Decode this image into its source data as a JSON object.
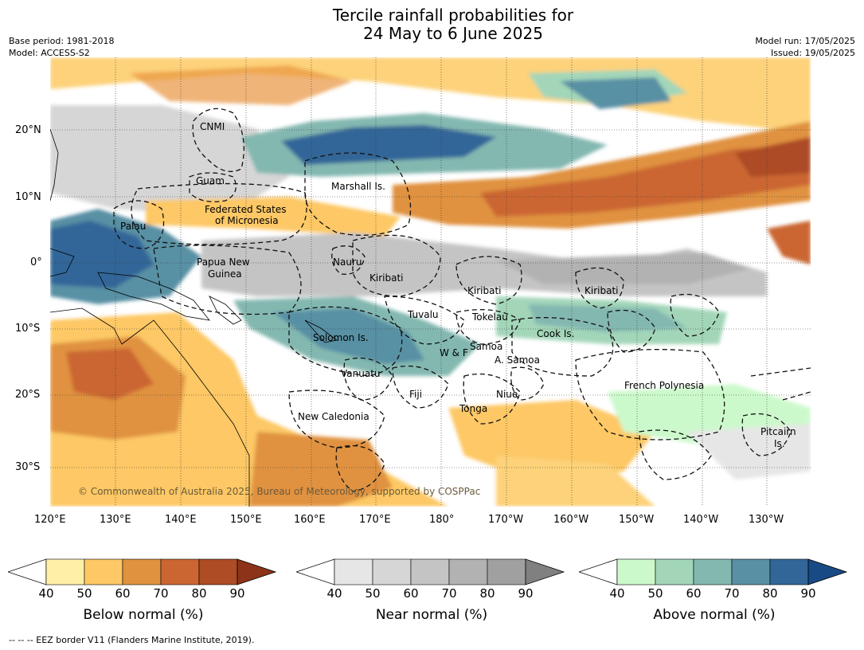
{
  "title_line1": "Tercile rainfall probabilities for",
  "title_line2": "24 May to 6 June 2025",
  "base_period": "Base period: 1981-2018",
  "model": "Model: ACCESS-S2",
  "model_run": "Model run: 17/05/2025",
  "issued": "Issued: 19/05/2025",
  "copyright": "© Commonwealth of Australia 2025, Bureau of Meteorology, supported by COSPPac",
  "lon_labels": [
    "120°E",
    "130°E",
    "140°E",
    "150°E",
    "160°E",
    "170°E",
    "180°",
    "170°W",
    "160°W",
    "150°W",
    "140°W",
    "130°W"
  ],
  "lat_labels": [
    "20°N",
    "10°N",
    "0°",
    "10°S",
    "20°S",
    "30°S"
  ],
  "regions": [
    "CNMI",
    "Guam",
    "Marshall Is.",
    "Federated States",
    "of Micronesia",
    "Palau",
    "Papua New",
    "Guinea",
    "Nauru",
    "Kiribati",
    "Kiribati",
    "Kiribati",
    "Tuvalu",
    "Tokelau",
    "Cook Is.",
    "Solomon Is.",
    "W & F",
    "Samoa",
    "A. Samoa",
    "Vanuatu",
    "Fiji",
    "Niue",
    "Tonga",
    "New Caledonia",
    "French Polynesia",
    "Pitcairn",
    "Is."
  ],
  "colorbars": {
    "below": {
      "label": "Below normal (%)",
      "colors": [
        "#fff0a8",
        "#fdc865",
        "#e0923f",
        "#cb6632",
        "#ad4c25",
        "#8d3319"
      ]
    },
    "near": {
      "label": "Near normal (%)",
      "colors": [
        "#e6e6e6",
        "#d6d6d6",
        "#c4c4c4",
        "#b2b2b2",
        "#a0a0a0",
        "#808080"
      ]
    },
    "above": {
      "label": "Above normal (%)",
      "colors": [
        "#ccf9cc",
        "#a3d6b9",
        "#83b8b0",
        "#5990a4",
        "#326698",
        "#184a86"
      ]
    },
    "ticks": [
      "40",
      "50",
      "60",
      "70",
      "80",
      "90"
    ]
  },
  "footer": "--  --  -- EEZ border V11 (Flanders Marine Institute, 2019)."
}
